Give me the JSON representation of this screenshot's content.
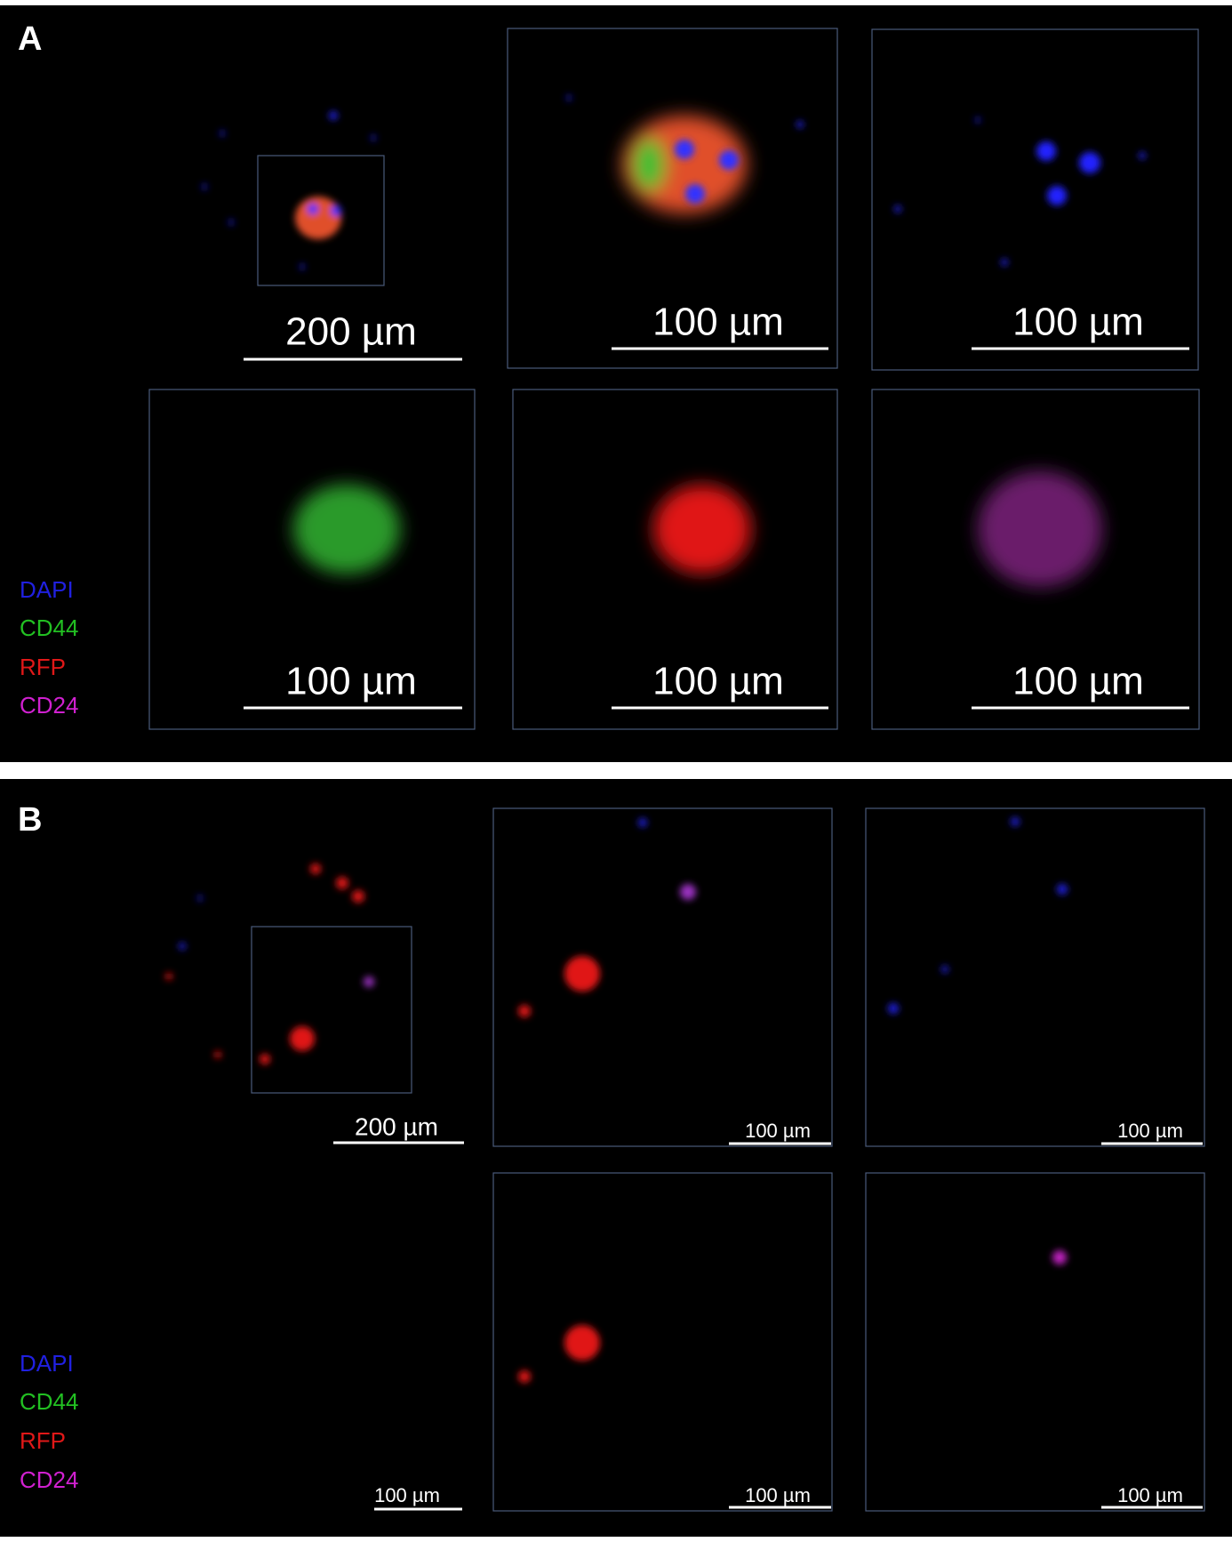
{
  "panels": [
    {
      "label": "A",
      "legend": [
        "DAPI",
        "CD44",
        "RFP",
        "CD24"
      ],
      "images": [
        {
          "scale_bar": "200 µm"
        },
        {
          "scale_bar": "100 µm"
        },
        {
          "scale_bar": "100 µm"
        },
        {
          "scale_bar": "100 µm"
        },
        {
          "scale_bar": "100 µm"
        },
        {
          "scale_bar": "100 µm"
        }
      ]
    },
    {
      "label": "B",
      "legend": [
        "DAPI",
        "CD44",
        "RFP",
        "CD24"
      ],
      "images": [
        {
          "scale_bar": "200 µm"
        },
        {
          "scale_bar": "100 µm"
        },
        {
          "scale_bar": "100 µm"
        },
        {
          "scale_bar": "100 µm"
        },
        {
          "scale_bar": "100 µm"
        },
        {
          "scale_bar": "100 µm"
        }
      ]
    }
  ]
}
